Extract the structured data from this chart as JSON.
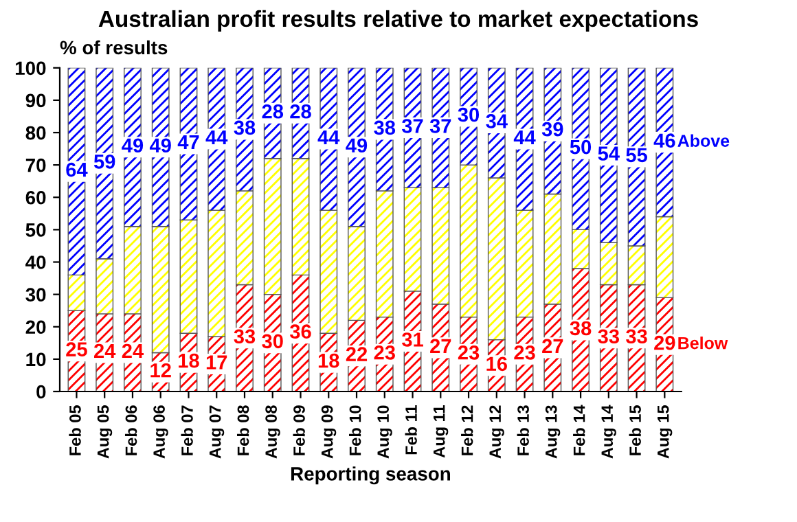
{
  "chart_data": {
    "type": "bar",
    "stacked": true,
    "title": "Australian profit results relative to market expectations",
    "ylabel": "% of results",
    "xlabel": "Reporting season",
    "categories": [
      "Feb 05",
      "Aug 05",
      "Feb 06",
      "Aug 06",
      "Feb 07",
      "Aug 07",
      "Feb 08",
      "Aug 08",
      "Feb 09",
      "Aug 09",
      "Feb 10",
      "Aug 10",
      "Feb 11",
      "Aug 11",
      "Feb 12",
      "Aug 12",
      "Feb 13",
      "Aug 13",
      "Feb 14",
      "Aug 14",
      "Feb 15",
      "Aug 15"
    ],
    "series": [
      {
        "name": "Below",
        "color": "#ff0000",
        "values": [
          25,
          24,
          24,
          12,
          18,
          17,
          33,
          30,
          36,
          18,
          22,
          23,
          31,
          27,
          23,
          16,
          23,
          27,
          38,
          33,
          33,
          29
        ],
        "value_labels": [
          "25",
          "24",
          "24",
          "12",
          "18",
          "17",
          "33",
          "30",
          "36",
          "18",
          "22",
          "23",
          "31",
          "27",
          "23",
          "16",
          "23",
          "27",
          "38",
          "33",
          "33",
          "29"
        ]
      },
      {
        "color": "#ffff00",
        "values": [
          11,
          17,
          27,
          39,
          35,
          39,
          29,
          42,
          36,
          38,
          29,
          39,
          32,
          36,
          47,
          50,
          33,
          34,
          12,
          13,
          12,
          25
        ]
      },
      {
        "name": "Above",
        "color": "#0000ff",
        "values": [
          64,
          59,
          49,
          49,
          47,
          44,
          38,
          28,
          28,
          44,
          49,
          38,
          37,
          37,
          30,
          34,
          44,
          39,
          50,
          54,
          55,
          46
        ],
        "value_labels": [
          "64",
          "59",
          "49",
          "49",
          "47",
          "44",
          "38",
          "28",
          "28",
          "44",
          "49",
          "38",
          "37",
          "37",
          "30",
          "34",
          "44",
          "39",
          "50",
          "54",
          "55",
          "46"
        ]
      }
    ],
    "ylim": [
      0,
      100
    ],
    "yticks": [
      0,
      10,
      20,
      30,
      40,
      50,
      60,
      70,
      80,
      90,
      100
    ],
    "grid": false,
    "legend": false
  }
}
